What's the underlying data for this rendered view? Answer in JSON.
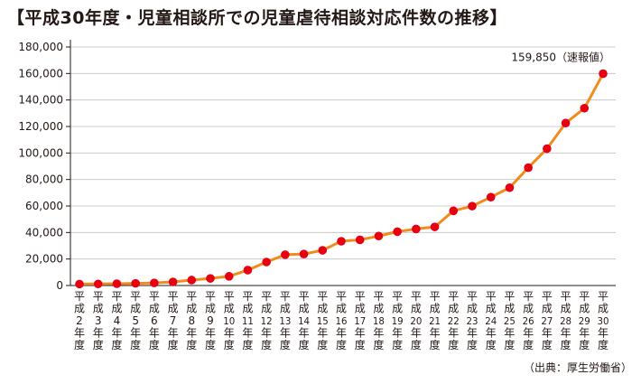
{
  "title": "【平成30年度・児童相談所での児童虐待相談対応件数の推移】",
  "source": "（出典：厚生労働省）",
  "chart_data": {
    "type": "line",
    "title": "【平成30年度・児童相談所での児童虐待相談対応件数の推移】",
    "xlabel": "",
    "ylabel": "",
    "ylim": [
      0,
      180000
    ],
    "yticks": [
      0,
      20000,
      40000,
      60000,
      80000,
      100000,
      120000,
      140000,
      160000,
      180000
    ],
    "ytick_labels": [
      "0",
      "20,000",
      "40,000",
      "60,000",
      "80,000",
      "100,000",
      "120,000",
      "140,000",
      "160,000",
      "180,000"
    ],
    "grid": true,
    "categories": [
      "平成2年度",
      "平成3年度",
      "平成4年度",
      "平成5年度",
      "平成6年度",
      "平成7年度",
      "平成8年度",
      "平成9年度",
      "平成10年度",
      "平成11年度",
      "平成12年度",
      "平成13年度",
      "平成14年度",
      "平成15年度",
      "平成16年度",
      "平成17年度",
      "平成18年度",
      "平成19年度",
      "平成20年度",
      "平成21年度",
      "平成22年度",
      "平成23年度",
      "平成24年度",
      "平成25年度",
      "平成26年度",
      "平成27年度",
      "平成28年度",
      "平成29年度",
      "平成30年度"
    ],
    "tick_labels": [
      [
        "平",
        "成",
        "2",
        "年",
        "度"
      ],
      [
        "平",
        "成",
        "3",
        "年",
        "度"
      ],
      [
        "平",
        "成",
        "4",
        "年",
        "度"
      ],
      [
        "平",
        "成",
        "5",
        "年",
        "度"
      ],
      [
        "平",
        "成",
        "6",
        "年",
        "度"
      ],
      [
        "平",
        "成",
        "7",
        "年",
        "度"
      ],
      [
        "平",
        "成",
        "8",
        "年",
        "度"
      ],
      [
        "平",
        "成",
        "9",
        "年",
        "度"
      ],
      [
        "平",
        "成",
        "10",
        "年",
        "度"
      ],
      [
        "平",
        "成",
        "11",
        "年",
        "度"
      ],
      [
        "平",
        "成",
        "12",
        "年",
        "度"
      ],
      [
        "平",
        "成",
        "13",
        "年",
        "度"
      ],
      [
        "平",
        "成",
        "14",
        "年",
        "度"
      ],
      [
        "平",
        "成",
        "15",
        "年",
        "度"
      ],
      [
        "平",
        "成",
        "16",
        "年",
        "度"
      ],
      [
        "平",
        "成",
        "17",
        "年",
        "度"
      ],
      [
        "平",
        "成",
        "18",
        "年",
        "度"
      ],
      [
        "平",
        "成",
        "19",
        "年",
        "度"
      ],
      [
        "平",
        "成",
        "20",
        "年",
        "度"
      ],
      [
        "平",
        "成",
        "21",
        "年",
        "度"
      ],
      [
        "平",
        "成",
        "22",
        "年",
        "度"
      ],
      [
        "平",
        "成",
        "23",
        "年",
        "度"
      ],
      [
        "平",
        "成",
        "24",
        "年",
        "度"
      ],
      [
        "平",
        "成",
        "25",
        "年",
        "度"
      ],
      [
        "平",
        "成",
        "26",
        "年",
        "度"
      ],
      [
        "平",
        "成",
        "27",
        "年",
        "度"
      ],
      [
        "平",
        "成",
        "28",
        "年",
        "度"
      ],
      [
        "平",
        "成",
        "29",
        "年",
        "度"
      ],
      [
        "平",
        "成",
        "30",
        "年",
        "度"
      ]
    ],
    "series": [
      {
        "name": "",
        "values": [
          1101,
          1171,
          1372,
          1611,
          1961,
          2722,
          4102,
          5352,
          6932,
          11631,
          17725,
          23274,
          23738,
          26569,
          33408,
          34472,
          37323,
          40639,
          42664,
          44211,
          56384,
          59919,
          66701,
          73802,
          88931,
          103286,
          122575,
          133778,
          159850
        ],
        "line_color": "#f08c1e",
        "marker_color": "#e60012"
      }
    ],
    "annotations": [
      {
        "point_index": 28,
        "text": "159,850（速報値）"
      }
    ]
  }
}
